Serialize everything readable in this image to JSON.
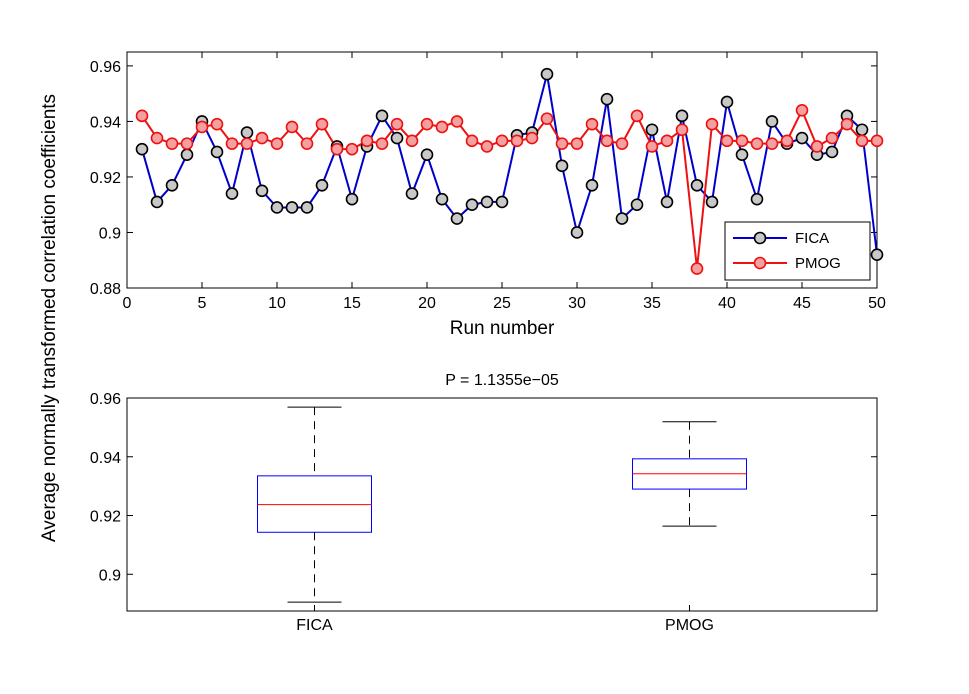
{
  "figure": {
    "ylabel": "Average normally transformed correlation coefficients"
  },
  "chart_data": [
    {
      "type": "line",
      "xlabel": "Run number",
      "ylabel": "",
      "xlim": [
        0,
        50
      ],
      "ylim": [
        0.88,
        0.965
      ],
      "xticks": [
        "0",
        "5",
        "10",
        "15",
        "20",
        "25",
        "30",
        "35",
        "40",
        "45",
        "50"
      ],
      "yticks": [
        "0.88",
        "0.9",
        "0.92",
        "0.94",
        "0.96"
      ],
      "grid": false,
      "legend_position": "bottom-right",
      "x": [
        1,
        2,
        3,
        4,
        5,
        6,
        7,
        8,
        9,
        10,
        11,
        12,
        13,
        14,
        15,
        16,
        17,
        18,
        19,
        20,
        21,
        22,
        23,
        24,
        25,
        26,
        27,
        28,
        29,
        30,
        31,
        32,
        33,
        34,
        35,
        36,
        37,
        38,
        39,
        40,
        41,
        42,
        43,
        44,
        45,
        46,
        47,
        48,
        49,
        50
      ],
      "series": [
        {
          "name": "FICA",
          "color": "#0000cc",
          "marker_color": "#c8c8c8",
          "values": [
            0.93,
            0.911,
            0.917,
            0.928,
            0.94,
            0.929,
            0.914,
            0.936,
            0.915,
            0.909,
            0.909,
            0.909,
            0.917,
            0.931,
            0.912,
            0.931,
            0.942,
            0.934,
            0.914,
            0.928,
            0.912,
            0.905,
            0.91,
            0.911,
            0.911,
            0.935,
            0.936,
            0.957,
            0.924,
            0.9,
            0.917,
            0.948,
            0.905,
            0.91,
            0.937,
            0.911,
            0.942,
            0.917,
            0.911,
            0.947,
            0.928,
            0.912,
            0.94,
            0.932,
            0.934,
            0.928,
            0.929,
            0.942,
            0.937,
            0.892
          ]
        },
        {
          "name": "PMOG",
          "color": "#ee1111",
          "marker_color": "#f5a0a0",
          "values": [
            0.942,
            0.934,
            0.932,
            0.932,
            0.938,
            0.939,
            0.932,
            0.932,
            0.934,
            0.932,
            0.938,
            0.932,
            0.939,
            0.93,
            0.93,
            0.933,
            0.932,
            0.939,
            0.933,
            0.939,
            0.938,
            0.94,
            0.933,
            0.931,
            0.933,
            0.933,
            0.934,
            0.941,
            0.932,
            0.932,
            0.939,
            0.933,
            0.932,
            0.942,
            0.931,
            0.933,
            0.937,
            0.887,
            0.939,
            0.933,
            0.933,
            0.932,
            0.932,
            0.933,
            0.944,
            0.931,
            0.934,
            0.939,
            0.933,
            0.933
          ]
        }
      ]
    },
    {
      "type": "box",
      "title": "P = 1.1355e−05",
      "categories": [
        "FICA",
        "PMOG"
      ],
      "ylim": [
        0.8875,
        0.96
      ],
      "yticks": [
        "0.9",
        "0.92",
        "0.94",
        "0.96"
      ],
      "boxes": [
        {
          "name": "FICA",
          "min": 0.8905,
          "q1": 0.9143,
          "median": 0.9237,
          "q3": 0.9335,
          "max": 0.9569
        },
        {
          "name": "PMOG",
          "min": 0.9164,
          "q1": 0.929,
          "median": 0.9342,
          "q3": 0.9393,
          "max": 0.9519
        }
      ],
      "box_color": "#0000ff",
      "median_color": "#ff0000",
      "whisker_color": "#000000"
    }
  ]
}
